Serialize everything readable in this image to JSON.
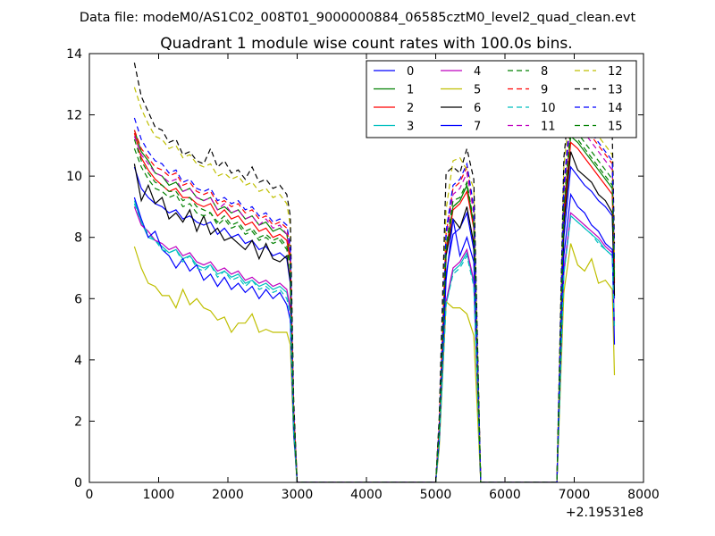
{
  "suptitle": "Data file: modeM0/AS1C02_008T01_9000000884_06585cztM0_level2_quad_clean.evt",
  "chart_data": {
    "type": "line",
    "title": "Quadrant 1 module wise count rates with 100.0s bins.",
    "xlabel": "",
    "ylabel": "",
    "x_offset_label": "+2.19531e8",
    "xlim": [
      0,
      8000
    ],
    "ylim": [
      0,
      14
    ],
    "xticks": [
      0,
      1000,
      2000,
      3000,
      4000,
      5000,
      6000,
      7000,
      8000
    ],
    "yticks": [
      0,
      2,
      4,
      6,
      8,
      10,
      12,
      14
    ],
    "grid": false,
    "legend_position": "top-right",
    "legend_columns": 4,
    "x": [
      650,
      750,
      850,
      950,
      1050,
      1150,
      1250,
      1350,
      1450,
      1550,
      1650,
      1750,
      1850,
      1950,
      2050,
      2150,
      2250,
      2350,
      2450,
      2550,
      2650,
      2750,
      2850,
      2900,
      2950,
      3000,
      3500,
      4000,
      4500,
      5000,
      5050,
      5150,
      5250,
      5350,
      5450,
      5550,
      5650,
      6000,
      6500,
      6750,
      6850,
      6950,
      7050,
      7150,
      7250,
      7350,
      7450,
      7550,
      7580
    ],
    "series": [
      {
        "name": "0",
        "color": "#0000ff",
        "dash": "solid",
        "values": [
          10.3,
          9.6,
          9.3,
          9.1,
          9.0,
          8.8,
          8.9,
          8.6,
          8.7,
          8.5,
          8.4,
          8.5,
          8.1,
          8.3,
          8.0,
          8.1,
          7.8,
          7.9,
          7.6,
          7.7,
          7.4,
          7.5,
          7.3,
          6.5,
          2.0,
          0,
          0,
          0,
          0,
          0,
          1.5,
          6.8,
          8.1,
          8.3,
          8.8,
          7.6,
          0,
          0,
          0,
          0,
          8.0,
          10.3,
          10.0,
          9.7,
          9.5,
          9.2,
          9.0,
          8.7,
          6.0
        ]
      },
      {
        "name": "1",
        "color": "#008000",
        "dash": "solid",
        "values": [
          11.5,
          10.8,
          10.5,
          10.1,
          10.0,
          9.7,
          9.8,
          9.5,
          9.6,
          9.3,
          9.2,
          9.3,
          8.9,
          9.0,
          8.8,
          8.9,
          8.6,
          8.7,
          8.4,
          8.5,
          8.2,
          8.3,
          8.1,
          7.4,
          2.2,
          0,
          0,
          0,
          0,
          0,
          1.7,
          7.6,
          9.0,
          9.2,
          9.7,
          8.4,
          0,
          0,
          0,
          0,
          8.9,
          11.3,
          11.1,
          10.8,
          10.5,
          10.2,
          9.9,
          9.6,
          6.6
        ]
      },
      {
        "name": "2",
        "color": "#ff0000",
        "dash": "solid",
        "values": [
          11.4,
          10.6,
          10.2,
          9.9,
          9.7,
          9.5,
          9.6,
          9.3,
          9.3,
          9.1,
          9.0,
          9.1,
          8.7,
          8.9,
          8.6,
          8.7,
          8.4,
          8.5,
          8.2,
          8.3,
          8.0,
          8.1,
          7.9,
          7.2,
          2.2,
          0,
          0,
          0,
          0,
          0,
          1.7,
          7.5,
          8.9,
          9.1,
          9.5,
          8.3,
          0,
          0,
          0,
          0,
          8.7,
          11.1,
          10.9,
          10.6,
          10.3,
          10.0,
          9.7,
          9.4,
          6.5
        ]
      },
      {
        "name": "3",
        "color": "#00bfbf",
        "dash": "solid",
        "values": [
          9.2,
          8.5,
          8.0,
          7.9,
          7.7,
          7.5,
          7.6,
          7.3,
          7.4,
          7.1,
          7.0,
          7.1,
          6.8,
          6.9,
          6.7,
          6.8,
          6.5,
          6.6,
          6.4,
          6.5,
          6.3,
          6.4,
          6.2,
          5.6,
          1.7,
          0,
          0,
          0,
          0,
          0,
          1.3,
          5.8,
          6.9,
          7.1,
          7.5,
          6.5,
          0,
          0,
          0,
          0,
          6.8,
          8.7,
          8.5,
          8.3,
          8.1,
          7.9,
          7.6,
          7.4,
          5.1
        ]
      },
      {
        "name": "4",
        "color": "#bf00bf",
        "dash": "solid",
        "values": [
          9.0,
          8.4,
          8.2,
          7.9,
          7.8,
          7.6,
          7.7,
          7.4,
          7.5,
          7.2,
          7.1,
          7.2,
          6.9,
          7.0,
          6.8,
          6.9,
          6.6,
          6.7,
          6.5,
          6.6,
          6.4,
          6.5,
          6.3,
          5.7,
          1.8,
          0,
          0,
          0,
          0,
          0,
          1.3,
          5.9,
          7.0,
          7.2,
          7.6,
          6.6,
          0,
          0,
          0,
          0,
          6.9,
          8.8,
          8.6,
          8.4,
          8.2,
          8.0,
          7.7,
          7.5,
          5.2
        ]
      },
      {
        "name": "5",
        "color": "#bfbf00",
        "dash": "solid",
        "values": [
          7.7,
          7.0,
          6.5,
          6.4,
          6.1,
          6.1,
          5.7,
          6.3,
          5.8,
          6.0,
          5.7,
          5.6,
          5.3,
          5.4,
          4.9,
          5.2,
          5.2,
          5.5,
          4.9,
          5.0,
          4.9,
          4.9,
          4.9,
          4.5,
          1.5,
          0,
          0,
          0,
          0,
          0,
          1.1,
          5.9,
          5.7,
          5.7,
          5.5,
          4.8,
          0,
          0,
          0,
          0,
          6.2,
          7.8,
          7.1,
          6.9,
          7.3,
          6.5,
          6.6,
          6.3,
          3.5
        ]
      },
      {
        "name": "6",
        "color": "#000000",
        "dash": "solid",
        "values": [
          10.4,
          9.2,
          9.7,
          9.1,
          9.3,
          8.6,
          8.8,
          8.5,
          8.9,
          8.2,
          8.7,
          8.1,
          8.3,
          7.9,
          8.0,
          7.8,
          7.6,
          7.9,
          7.3,
          7.8,
          7.3,
          7.2,
          7.4,
          6.6,
          2.1,
          0,
          0,
          0,
          0,
          0,
          1.6,
          7.4,
          8.6,
          8.3,
          9.0,
          7.8,
          0,
          0,
          0,
          0,
          8.4,
          10.8,
          10.2,
          10.0,
          9.8,
          9.4,
          9.2,
          8.8,
          6.1
        ]
      },
      {
        "name": "7",
        "color": "#0000ff",
        "dash": "solid",
        "values": [
          9.3,
          8.6,
          8.0,
          8.2,
          7.6,
          7.4,
          7.0,
          7.3,
          6.9,
          7.1,
          6.6,
          6.8,
          6.4,
          6.7,
          6.3,
          6.5,
          6.2,
          6.4,
          6.0,
          6.3,
          6.0,
          6.2,
          5.8,
          5.3,
          1.6,
          0,
          0,
          0,
          0,
          0,
          1.3,
          6.6,
          8.6,
          7.4,
          8.0,
          7.2,
          0,
          0,
          0,
          0,
          7.4,
          9.4,
          9.0,
          8.8,
          8.4,
          8.2,
          7.8,
          7.6,
          4.5
        ]
      },
      {
        "name": "8",
        "color": "#008000",
        "dash": "dashed",
        "values": [
          11.2,
          10.5,
          10.1,
          9.8,
          9.7,
          9.5,
          9.5,
          9.2,
          9.3,
          9.0,
          8.9,
          8.8,
          8.5,
          8.7,
          8.4,
          8.5,
          8.2,
          8.3,
          8.0,
          8.1,
          7.9,
          8.0,
          7.7,
          7.1,
          2.2,
          0,
          0,
          0,
          0,
          0,
          1.7,
          7.7,
          9.2,
          9.3,
          9.8,
          8.5,
          0,
          0,
          0,
          0,
          9.1,
          11.6,
          11.4,
          11.1,
          10.8,
          10.5,
          10.2,
          9.9,
          6.8
        ]
      },
      {
        "name": "9",
        "color": "#ff0000",
        "dash": "dashed",
        "values": [
          11.5,
          10.9,
          10.6,
          10.3,
          10.2,
          10.0,
          10.1,
          9.7,
          9.8,
          9.5,
          9.4,
          9.5,
          9.1,
          9.2,
          9.0,
          9.1,
          8.8,
          8.9,
          8.6,
          8.7,
          8.4,
          8.5,
          8.3,
          7.6,
          2.3,
          0,
          0,
          0,
          0,
          0,
          1.8,
          8.1,
          9.6,
          9.8,
          10.3,
          8.9,
          0,
          0,
          0,
          0,
          9.6,
          12.1,
          11.9,
          11.6,
          11.3,
          11.0,
          10.7,
          10.4,
          7.1
        ]
      },
      {
        "name": "10",
        "color": "#00bfbf",
        "dash": "dashed",
        "values": [
          9.1,
          8.5,
          8.1,
          7.9,
          7.6,
          7.5,
          7.6,
          7.2,
          7.4,
          7.0,
          6.9,
          7.1,
          6.7,
          6.9,
          6.6,
          6.7,
          6.4,
          6.6,
          6.3,
          6.4,
          6.2,
          6.3,
          6.0,
          5.5,
          1.7,
          0,
          0,
          0,
          0,
          0,
          1.3,
          5.8,
          6.8,
          7.0,
          7.4,
          6.4,
          0,
          0,
          0,
          0,
          6.8,
          8.7,
          8.5,
          8.3,
          8.1,
          7.8,
          7.6,
          7.4,
          5.0
        ]
      },
      {
        "name": "11",
        "color": "#bf00bf",
        "dash": "dashed",
        "values": [
          11.3,
          10.7,
          10.4,
          10.1,
          10.0,
          9.8,
          9.9,
          9.5,
          9.6,
          9.3,
          9.2,
          9.3,
          8.9,
          9.1,
          8.8,
          8.9,
          8.6,
          8.7,
          8.4,
          8.6,
          8.3,
          8.4,
          8.1,
          7.5,
          2.3,
          0,
          0,
          0,
          0,
          0,
          1.8,
          8.0,
          9.4,
          9.6,
          10.1,
          8.8,
          0,
          0,
          0,
          0,
          9.4,
          11.9,
          11.7,
          11.4,
          11.1,
          10.8,
          10.5,
          10.2,
          7.0
        ]
      },
      {
        "name": "12",
        "color": "#bfbf00",
        "dash": "dashed",
        "values": [
          12.9,
          12.2,
          11.7,
          11.3,
          11.2,
          10.9,
          11.0,
          10.6,
          10.7,
          10.4,
          10.3,
          10.4,
          10.0,
          10.1,
          9.9,
          10.0,
          9.7,
          9.8,
          9.5,
          9.6,
          9.3,
          9.4,
          9.1,
          8.4,
          2.6,
          0,
          0,
          0,
          0,
          0,
          2.0,
          8.9,
          10.5,
          10.6,
          10.2,
          9.6,
          0,
          0,
          0,
          0,
          10.3,
          12.4,
          12.2,
          11.9,
          11.6,
          11.3,
          11.0,
          10.7,
          7.4
        ]
      },
      {
        "name": "13",
        "color": "#000000",
        "dash": "dashed",
        "values": [
          13.7,
          12.6,
          12.1,
          11.6,
          11.5,
          11.1,
          11.2,
          10.7,
          10.8,
          10.5,
          10.4,
          10.9,
          10.3,
          10.5,
          10.1,
          10.2,
          9.9,
          10.3,
          9.8,
          9.9,
          9.6,
          9.7,
          9.4,
          8.7,
          2.7,
          0,
          0,
          0,
          0,
          0,
          2.1,
          10.1,
          10.3,
          10.1,
          10.9,
          9.9,
          0,
          0,
          0,
          0,
          10.6,
          12.9,
          12.8,
          12.5,
          12.2,
          11.9,
          11.6,
          11.3,
          7.8
        ]
      },
      {
        "name": "14",
        "color": "#0000ff",
        "dash": "dashed",
        "values": [
          11.9,
          11.2,
          10.8,
          10.5,
          10.4,
          10.1,
          10.2,
          9.8,
          9.9,
          9.6,
          9.5,
          9.6,
          9.2,
          9.3,
          9.1,
          9.2,
          8.9,
          9.0,
          8.7,
          8.8,
          8.5,
          8.6,
          8.4,
          7.7,
          2.3,
          0,
          0,
          0,
          0,
          0,
          1.8,
          8.2,
          9.7,
          9.9,
          10.4,
          9.0,
          0,
          0,
          0,
          0,
          9.7,
          12.2,
          12.0,
          11.7,
          11.4,
          11.1,
          10.8,
          10.5,
          7.2
        ]
      },
      {
        "name": "15",
        "color": "#008000",
        "dash": "dashed",
        "values": [
          10.9,
          10.3,
          9.9,
          9.6,
          9.5,
          9.3,
          9.4,
          9.0,
          9.1,
          8.8,
          8.7,
          8.8,
          8.4,
          8.6,
          8.3,
          8.4,
          8.1,
          8.2,
          7.9,
          8.0,
          7.8,
          7.9,
          7.6,
          7.0,
          2.1,
          0,
          0,
          0,
          0,
          0,
          1.7,
          7.6,
          9.0,
          9.2,
          9.7,
          8.4,
          0,
          0,
          0,
          0,
          9.0,
          11.4,
          11.2,
          10.9,
          10.6,
          10.3,
          10.0,
          9.7,
          6.7
        ]
      }
    ]
  }
}
